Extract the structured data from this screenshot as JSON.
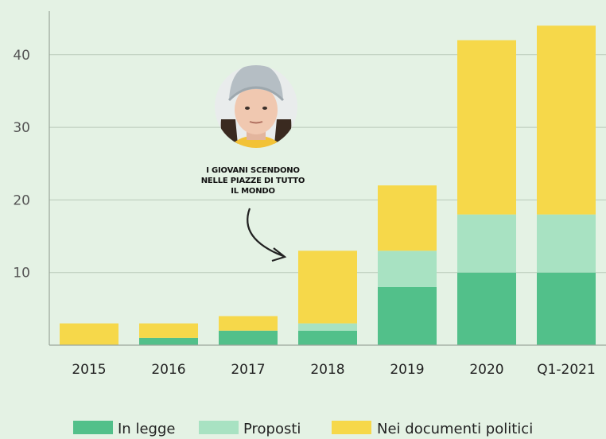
{
  "chart_data": {
    "type": "bar",
    "stacked": true,
    "categories": [
      "2015",
      "2016",
      "2017",
      "2018",
      "2019",
      "2020",
      "Q1-2021"
    ],
    "series": [
      {
        "name": "In legge",
        "color": "#52c08a",
        "values": [
          0,
          1,
          2,
          2,
          8,
          10,
          10
        ]
      },
      {
        "name": "Proposti",
        "color": "#a8e2c2",
        "values": [
          0,
          0,
          0,
          1,
          5,
          8,
          8
        ]
      },
      {
        "name": "Nei documenti politici",
        "color": "#f6d84a",
        "values": [
          3,
          2,
          2,
          10,
          9,
          24,
          26
        ]
      }
    ],
    "ylim": [
      0,
      46
    ],
    "yticks": [
      10,
      20,
      30,
      40
    ],
    "grid": true,
    "legend_position": "bottom",
    "annotation": {
      "lines": [
        "I GIOVANI SCENDONO",
        "NELLE PIAZZE DI TUTTO",
        "IL MONDO"
      ],
      "target_category": "2018",
      "image": "portrait-of-young-activist"
    },
    "colors": {
      "background": "#e4f2e4",
      "grid": "#b9c9b9",
      "axis": "#9aa69a"
    }
  }
}
